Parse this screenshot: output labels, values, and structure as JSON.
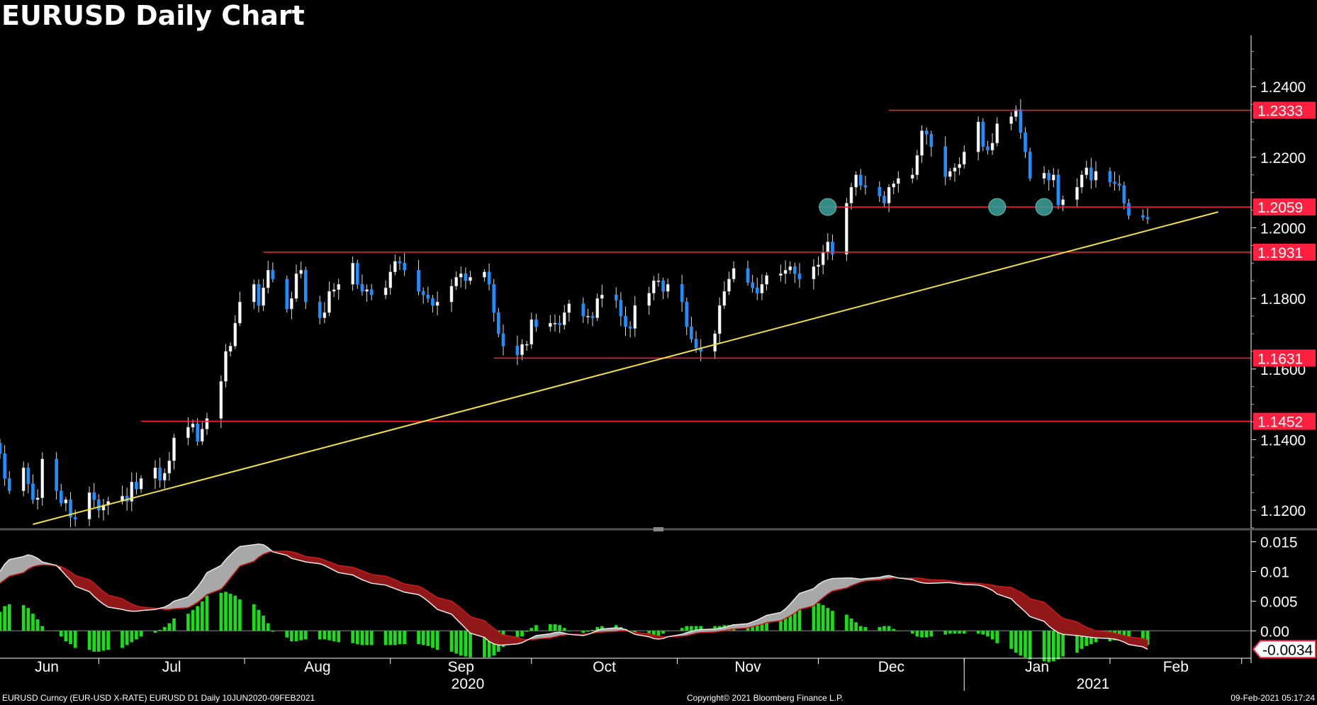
{
  "title": "EURUSD Daily Chart",
  "footer": {
    "left": "EURUSD Curncy (EUR-USD X-RATE) EURUSD D1  Daily 10JUN2020-09FEB2021",
    "center": "Copyright© 2021 Bloomberg Finance L.P.",
    "right": "09-Feb-2021 05:17:24"
  },
  "chart_data": [
    {
      "type": "candlestick",
      "title": "EURUSD Daily Chart",
      "date_range": [
        "2020-06-10",
        "2021-02-09"
      ],
      "x_month_labels": [
        "Jun",
        "Jul",
        "Aug",
        "Sep",
        "Oct",
        "Nov",
        "Dec",
        "Jan",
        "Feb"
      ],
      "x_year_labels": [
        "2020",
        "2021"
      ],
      "y_ticks": [
        "1.2400",
        "1.2200",
        "1.2000",
        "1.1800",
        "1.1600",
        "1.1400",
        "1.1200"
      ],
      "ylim": [
        1.115,
        1.2545
      ],
      "closes": [
        1.136,
        1.129,
        1.1255,
        1.132,
        1.1275,
        1.123,
        1.1235,
        1.1345,
        1.1255,
        1.122,
        1.123,
        1.118,
        1.1175,
        1.125,
        1.123,
        1.12,
        1.1215,
        1.1225,
        1.124,
        1.1225,
        1.128,
        1.126,
        1.129,
        1.132,
        1.1285,
        1.1305,
        1.134,
        1.1405,
        1.1435,
        1.1445,
        1.1395,
        1.143,
        1.146,
        1.1565,
        1.165,
        1.1665,
        1.173,
        1.179,
        1.184,
        1.178,
        1.183,
        1.188,
        1.1855,
        1.177,
        1.18,
        1.187,
        1.188,
        1.179,
        1.1745,
        1.176,
        1.182,
        1.1825,
        1.184,
        1.19,
        1.184,
        1.182,
        1.1825,
        1.181,
        1.183,
        1.1875,
        1.1905,
        1.19,
        1.188,
        1.182,
        1.181,
        1.18,
        1.178,
        1.179,
        1.1835,
        1.186,
        1.187,
        1.185,
        1.186,
        1.1875,
        1.184,
        1.176,
        1.17,
        1.1665,
        1.164,
        1.167,
        1.167,
        1.174,
        1.172,
        1.173,
        1.173,
        1.1725,
        1.176,
        1.1785,
        1.175,
        1.175,
        1.1745,
        1.18,
        1.181,
        1.1795,
        1.175,
        1.172,
        1.1715,
        1.178,
        1.1815,
        1.185,
        1.185,
        1.182,
        1.184,
        1.179,
        1.172,
        1.1685,
        1.166,
        1.165,
        1.17,
        1.178,
        1.182,
        1.1855,
        1.1885,
        1.1845,
        1.183,
        1.1815,
        1.184,
        1.1865,
        1.187,
        1.188,
        1.189,
        1.187,
        1.1855,
        1.189,
        1.1895,
        1.193,
        1.196,
        1.1925,
        1.207,
        1.2115,
        1.215,
        1.212,
        1.2115,
        1.209,
        1.207,
        1.2115,
        1.2125,
        1.214,
        1.215,
        1.2205,
        1.2275,
        1.2265,
        1.223,
        1.2145,
        1.216,
        1.217,
        1.218,
        1.2215,
        1.23,
        1.223,
        1.222,
        1.224,
        1.2295,
        1.2315,
        1.2335,
        1.227,
        1.2215,
        1.214,
        1.2155,
        1.2135,
        1.215,
        1.2065,
        1.208,
        1.2115,
        1.215,
        1.217,
        1.2135,
        1.216,
        1.213,
        1.2125,
        1.212,
        1.207,
        1.2035,
        1.203,
        1.2025,
        1.204,
        1.2055
      ],
      "horizontal_levels": [
        1.2333,
        1.2059,
        1.1931,
        1.1631,
        1.1452
      ],
      "level_labels": [
        "1.2333",
        "1.2059",
        "1.1931",
        "1.1631",
        "1.1452"
      ],
      "trendline": {
        "start": [
          "2020-06-17",
          1.116
        ],
        "end": [
          "2021-02-24",
          1.2045
        ]
      },
      "markers": [
        {
          "date": "2020-12-03",
          "value": 1.2059
        },
        {
          "date": "2021-01-08",
          "value": 1.2059
        },
        {
          "date": "2021-01-18",
          "value": 1.2059
        }
      ],
      "colors": {
        "up": "#ffffff",
        "down": "#1e8fff",
        "level": "#ff2040",
        "trendline": "#f0e040",
        "marker": "#3a9a94"
      }
    },
    {
      "type": "macd",
      "y_ticks": [
        "0.015",
        "0.01",
        "0.005",
        "0.00"
      ],
      "ylim": [
        -0.0045,
        0.0165
      ],
      "last_value_label": "-0.0034",
      "macd": [
        0.01,
        0.0112,
        0.012,
        0.0125,
        0.0128,
        0.0126,
        0.0122,
        0.0116,
        0.011,
        0.0102,
        0.0093,
        0.0085,
        0.0075,
        0.0066,
        0.0058,
        0.0051,
        0.0045,
        0.004,
        0.0036,
        0.0034,
        0.0033,
        0.0033,
        0.0034,
        0.0036,
        0.0038,
        0.004,
        0.0044,
        0.005,
        0.0057,
        0.0065,
        0.0074,
        0.0085,
        0.0098,
        0.011,
        0.012,
        0.0128,
        0.0136,
        0.0142,
        0.0145,
        0.0146,
        0.0145,
        0.014,
        0.0133,
        0.0127,
        0.0122,
        0.012,
        0.0118,
        0.0116,
        0.0113,
        0.011,
        0.0106,
        0.0102,
        0.0098,
        0.0094,
        0.009,
        0.0086,
        0.0083,
        0.008,
        0.0077,
        0.0074,
        0.0071,
        0.0068,
        0.0065,
        0.0061,
        0.0056,
        0.005,
        0.0043,
        0.0036,
        0.0028,
        0.002,
        0.0012,
        0.0004,
        -0.0004,
        -0.0011,
        -0.0018,
        -0.0022,
        -0.0024,
        -0.0024,
        -0.0022,
        -0.002,
        -0.0016,
        -0.0012,
        -0.0008,
        -0.0005,
        -0.0003,
        -0.0002,
        -0.0004,
        -0.0006,
        -0.0008,
        -0.0006,
        -0.0003,
        0.0001,
        0.0003,
        0.0005,
        0.0004,
        0.0002,
        -0.0002,
        -0.0006,
        -0.001,
        -0.0013,
        -0.0014,
        -0.0013,
        -0.001,
        -0.0006,
        -0.0003,
        -0.0001,
        0.0001,
        0.0002,
        0.0003,
        0.0004,
        0.0006,
        0.0008,
        0.001,
        0.0012,
        0.0015,
        0.0018,
        0.0022,
        0.0026,
        0.0031,
        0.0037,
        0.0045,
        0.0054,
        0.0063,
        0.0071,
        0.0078,
        0.0083,
        0.0086,
        0.0088,
        0.0089,
        0.0089,
        0.0088,
        0.0087,
        0.0088,
        0.009,
        0.0092,
        0.0093,
        0.0091,
        0.0089,
        0.0086,
        0.0083,
        0.0081,
        0.008,
        0.008,
        0.0081,
        0.0081,
        0.008,
        0.0079,
        0.0078,
        0.0077,
        0.0075,
        0.0072,
        0.0068,
        0.0062,
        0.0054,
        0.0046,
        0.0039,
        0.0032,
        0.0024,
        0.0016,
        0.0008,
        0.0002,
        -0.0003,
        -0.0006,
        -0.0008,
        -0.0009,
        -0.001,
        -0.0011,
        -0.0012,
        -0.0013,
        -0.0014,
        -0.0016,
        -0.0019,
        -0.0023,
        -0.0027,
        -0.0031,
        -0.0033,
        -0.0034
      ],
      "signal": [
        0.008,
        0.0086,
        0.0092,
        0.0098,
        0.0104,
        0.0108,
        0.011,
        0.0111,
        0.011,
        0.0108,
        0.0104,
        0.0099,
        0.0093,
        0.0086,
        0.008,
        0.0073,
        0.0066,
        0.006,
        0.0054,
        0.0049,
        0.0045,
        0.0042,
        0.004,
        0.0038,
        0.0037,
        0.0036,
        0.0036,
        0.0037,
        0.0039,
        0.0043,
        0.0048,
        0.0054,
        0.0061,
        0.007,
        0.0079,
        0.0089,
        0.0099,
        0.0109,
        0.0117,
        0.0124,
        0.0129,
        0.0132,
        0.0134,
        0.0134,
        0.0133,
        0.0131,
        0.0128,
        0.0125,
        0.0122,
        0.0119,
        0.0116,
        0.0113,
        0.011,
        0.0107,
        0.0104,
        0.0101,
        0.0098,
        0.0095,
        0.0092,
        0.0089,
        0.0086,
        0.0082,
        0.0079,
        0.0075,
        0.0071,
        0.0066,
        0.0061,
        0.0056,
        0.005,
        0.0044,
        0.0038,
        0.0031,
        0.0024,
        0.0017,
        0.001,
        0.0004,
        -0.0002,
        -0.0007,
        -0.0011,
        -0.0014,
        -0.0015,
        -0.0015,
        -0.0014,
        -0.0012,
        -0.001,
        -0.0008,
        -0.0007,
        -0.0006,
        -0.0006,
        -0.0005,
        -0.0004,
        -0.0003,
        -0.0002,
        -0.0001,
        0.0,
        0.0,
        -0.0001,
        -0.0003,
        -0.0005,
        -0.0007,
        -0.0009,
        -0.001,
        -0.001,
        -0.0009,
        -0.0008,
        -0.0006,
        -0.0004,
        -0.0003,
        -0.0002,
        -0.0001,
        0.0,
        0.0002,
        0.0003,
        0.0005,
        0.0007,
        0.0009,
        0.0011,
        0.0014,
        0.0017,
        0.0021,
        0.0025,
        0.003,
        0.0036,
        0.0042,
        0.0049,
        0.0056,
        0.0062,
        0.0067,
        0.0072,
        0.0076,
        0.0079,
        0.0082,
        0.0084,
        0.0086,
        0.0087,
        0.0088,
        0.0089,
        0.0089,
        0.0089,
        0.0089,
        0.0088,
        0.0087,
        0.0086,
        0.0085,
        0.0084,
        0.0083,
        0.0082,
        0.0081,
        0.008,
        0.0079,
        0.0078,
        0.0077,
        0.0075,
        0.0073,
        0.0069,
        0.0065,
        0.006,
        0.0054,
        0.0048,
        0.0041,
        0.0034,
        0.0027,
        0.0021,
        0.0015,
        0.001,
        0.0006,
        0.0003,
        0.0,
        -0.0002,
        -0.0004,
        -0.0006,
        -0.0008,
        -0.001,
        -0.0013,
        -0.0016,
        -0.0019,
        -0.0023,
        -0.0026,
        -0.0029
      ],
      "colors": {
        "macd": "#e8e8e8",
        "signal": "#d01818",
        "histogram": "#18e018",
        "fill_up": "#a8a8a8",
        "fill_down": "#901818",
        "last_label_border": "#ff2040"
      }
    }
  ]
}
